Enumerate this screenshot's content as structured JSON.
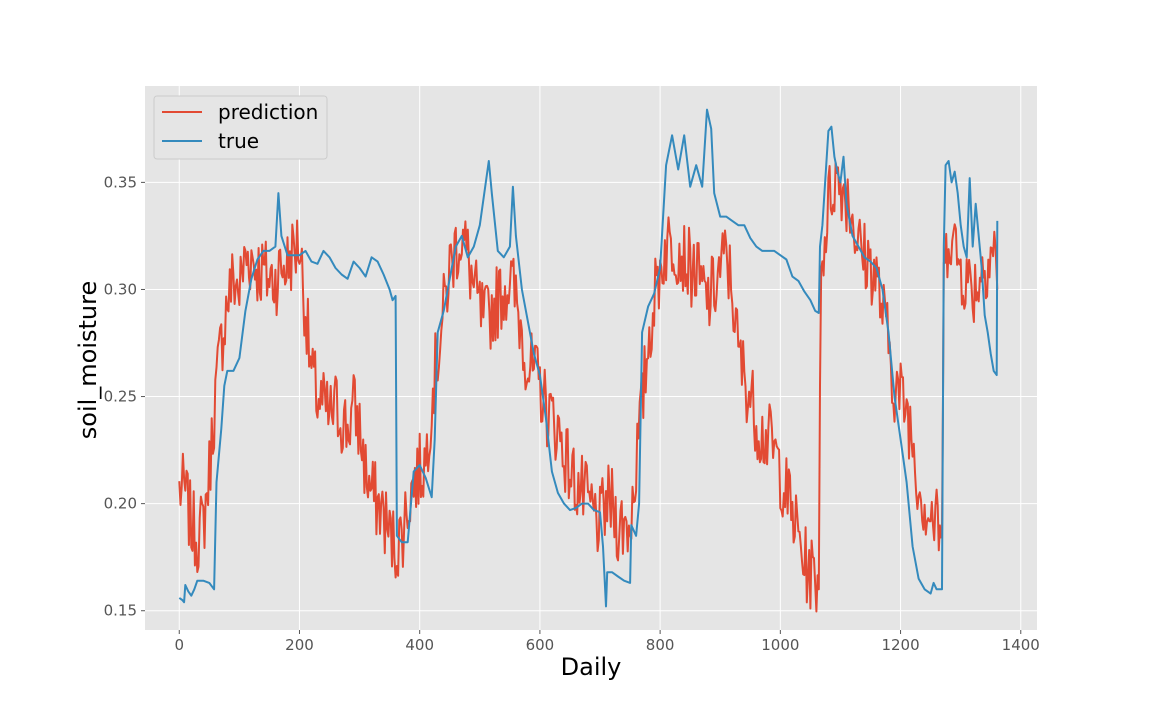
{
  "chart_data": {
    "type": "line",
    "title": "",
    "xlabel": "Daily",
    "ylabel": "soil_moisture",
    "xlim": [
      -57,
      1427
    ],
    "ylim": [
      0.141,
      0.395
    ],
    "xticks": [
      0,
      200,
      400,
      600,
      800,
      1000,
      1200,
      1400
    ],
    "xtick_labels": [
      "0",
      "200",
      "400",
      "600",
      "800",
      "1000",
      "1200",
      "1400"
    ],
    "yticks": [
      0.15,
      0.2,
      0.25,
      0.3,
      0.35
    ],
    "ytick_labels": [
      "0.15",
      "0.20",
      "0.25",
      "0.30",
      "0.35"
    ],
    "grid": true,
    "legend_position": "top-left",
    "series": [
      {
        "name": "prediction",
        "color": "#E24A33",
        "noisy": true,
        "points": [
          [
            0,
            0.207
          ],
          [
            10,
            0.205
          ],
          [
            20,
            0.19
          ],
          [
            30,
            0.185
          ],
          [
            40,
            0.19
          ],
          [
            50,
            0.215
          ],
          [
            60,
            0.25
          ],
          [
            70,
            0.275
          ],
          [
            80,
            0.295
          ],
          [
            90,
            0.305
          ],
          [
            100,
            0.3
          ],
          [
            110,
            0.315
          ],
          [
            120,
            0.315
          ],
          [
            130,
            0.31
          ],
          [
            140,
            0.308
          ],
          [
            150,
            0.305
          ],
          [
            160,
            0.305
          ],
          [
            170,
            0.31
          ],
          [
            180,
            0.312
          ],
          [
            190,
            0.318
          ],
          [
            200,
            0.322
          ],
          [
            210,
            0.29
          ],
          [
            220,
            0.26
          ],
          [
            230,
            0.25
          ],
          [
            240,
            0.245
          ],
          [
            250,
            0.24
          ],
          [
            260,
            0.245
          ],
          [
            270,
            0.24
          ],
          [
            280,
            0.235
          ],
          [
            290,
            0.245
          ],
          [
            300,
            0.235
          ],
          [
            310,
            0.215
          ],
          [
            320,
            0.205
          ],
          [
            330,
            0.2
          ],
          [
            340,
            0.195
          ],
          [
            350,
            0.185
          ],
          [
            360,
            0.18
          ],
          [
            370,
            0.185
          ],
          [
            380,
            0.2
          ],
          [
            390,
            0.21
          ],
          [
            400,
            0.215
          ],
          [
            410,
            0.22
          ],
          [
            420,
            0.25
          ],
          [
            430,
            0.27
          ],
          [
            440,
            0.29
          ],
          [
            450,
            0.31
          ],
          [
            460,
            0.32
          ],
          [
            470,
            0.325
          ],
          [
            480,
            0.315
          ],
          [
            490,
            0.3
          ],
          [
            500,
            0.29
          ],
          [
            510,
            0.285
          ],
          [
            520,
            0.29
          ],
          [
            530,
            0.295
          ],
          [
            540,
            0.3
          ],
          [
            550,
            0.305
          ],
          [
            560,
            0.295
          ],
          [
            570,
            0.28
          ],
          [
            580,
            0.265
          ],
          [
            590,
            0.26
          ],
          [
            600,
            0.255
          ],
          [
            610,
            0.245
          ],
          [
            620,
            0.24
          ],
          [
            630,
            0.235
          ],
          [
            640,
            0.225
          ],
          [
            650,
            0.215
          ],
          [
            660,
            0.21
          ],
          [
            670,
            0.205
          ],
          [
            680,
            0.2
          ],
          [
            690,
            0.195
          ],
          [
            700,
            0.19
          ],
          [
            710,
            0.2
          ],
          [
            720,
            0.2
          ],
          [
            730,
            0.19
          ],
          [
            740,
            0.19
          ],
          [
            750,
            0.19
          ],
          [
            760,
            0.22
          ],
          [
            770,
            0.245
          ],
          [
            780,
            0.275
          ],
          [
            790,
            0.295
          ],
          [
            800,
            0.31
          ],
          [
            810,
            0.32
          ],
          [
            820,
            0.322
          ],
          [
            830,
            0.32
          ],
          [
            840,
            0.315
          ],
          [
            850,
            0.31
          ],
          [
            860,
            0.308
          ],
          [
            870,
            0.3
          ],
          [
            880,
            0.295
          ],
          [
            890,
            0.3
          ],
          [
            900,
            0.31
          ],
          [
            910,
            0.315
          ],
          [
            920,
            0.3
          ],
          [
            930,
            0.27
          ],
          [
            940,
            0.26
          ],
          [
            950,
            0.25
          ],
          [
            960,
            0.24
          ],
          [
            970,
            0.232
          ],
          [
            980,
            0.23
          ],
          [
            990,
            0.225
          ],
          [
            1000,
            0.215
          ],
          [
            1010,
            0.205
          ],
          [
            1020,
            0.195
          ],
          [
            1030,
            0.185
          ],
          [
            1040,
            0.172
          ],
          [
            1050,
            0.168
          ],
          [
            1060,
            0.165
          ],
          [
            1064,
            0.16
          ],
          [
            1066,
            0.255
          ],
          [
            1068,
            0.31
          ],
          [
            1070,
            0.315
          ],
          [
            1080,
            0.34
          ],
          [
            1090,
            0.352
          ],
          [
            1100,
            0.35
          ],
          [
            1110,
            0.345
          ],
          [
            1120,
            0.335
          ],
          [
            1130,
            0.32
          ],
          [
            1140,
            0.315
          ],
          [
            1150,
            0.312
          ],
          [
            1160,
            0.305
          ],
          [
            1170,
            0.29
          ],
          [
            1180,
            0.275
          ],
          [
            1190,
            0.255
          ],
          [
            1200,
            0.25
          ],
          [
            1210,
            0.245
          ],
          [
            1220,
            0.23
          ],
          [
            1230,
            0.21
          ],
          [
            1240,
            0.2
          ],
          [
            1250,
            0.195
          ],
          [
            1260,
            0.19
          ],
          [
            1269,
            0.187
          ],
          [
            1272,
            0.3
          ],
          [
            1280,
            0.33
          ],
          [
            1290,
            0.32
          ],
          [
            1300,
            0.31
          ],
          [
            1310,
            0.305
          ],
          [
            1320,
            0.3
          ],
          [
            1330,
            0.305
          ],
          [
            1340,
            0.312
          ],
          [
            1350,
            0.318
          ],
          [
            1358,
            0.32
          ],
          [
            1361,
            0.3
          ]
        ]
      },
      {
        "name": "true",
        "color": "#348ABD",
        "noisy": false,
        "points": [
          [
            0,
            0.156
          ],
          [
            5,
            0.155
          ],
          [
            8,
            0.154
          ],
          [
            10,
            0.162
          ],
          [
            15,
            0.159
          ],
          [
            20,
            0.157
          ],
          [
            25,
            0.16
          ],
          [
            30,
            0.164
          ],
          [
            40,
            0.164
          ],
          [
            50,
            0.163
          ],
          [
            58,
            0.16
          ],
          [
            62,
            0.21
          ],
          [
            70,
            0.235
          ],
          [
            75,
            0.255
          ],
          [
            80,
            0.262
          ],
          [
            90,
            0.262
          ],
          [
            100,
            0.268
          ],
          [
            110,
            0.29
          ],
          [
            120,
            0.305
          ],
          [
            130,
            0.314
          ],
          [
            140,
            0.318
          ],
          [
            150,
            0.318
          ],
          [
            160,
            0.32
          ],
          [
            165,
            0.345
          ],
          [
            170,
            0.325
          ],
          [
            180,
            0.316
          ],
          [
            190,
            0.316
          ],
          [
            200,
            0.316
          ],
          [
            210,
            0.318
          ],
          [
            220,
            0.313
          ],
          [
            230,
            0.312
          ],
          [
            240,
            0.318
          ],
          [
            250,
            0.315
          ],
          [
            260,
            0.31
          ],
          [
            270,
            0.307
          ],
          [
            280,
            0.305
          ],
          [
            290,
            0.313
          ],
          [
            300,
            0.31
          ],
          [
            310,
            0.306
          ],
          [
            320,
            0.315
          ],
          [
            330,
            0.313
          ],
          [
            340,
            0.307
          ],
          [
            350,
            0.3
          ],
          [
            355,
            0.295
          ],
          [
            360,
            0.297
          ],
          [
            362,
            0.185
          ],
          [
            370,
            0.182
          ],
          [
            380,
            0.182
          ],
          [
            390,
            0.215
          ],
          [
            400,
            0.218
          ],
          [
            410,
            0.212
          ],
          [
            420,
            0.203
          ],
          [
            425,
            0.23
          ],
          [
            430,
            0.28
          ],
          [
            440,
            0.29
          ],
          [
            450,
            0.305
          ],
          [
            460,
            0.32
          ],
          [
            470,
            0.325
          ],
          [
            480,
            0.315
          ],
          [
            490,
            0.32
          ],
          [
            500,
            0.33
          ],
          [
            510,
            0.35
          ],
          [
            515,
            0.36
          ],
          [
            520,
            0.345
          ],
          [
            530,
            0.318
          ],
          [
            540,
            0.315
          ],
          [
            550,
            0.32
          ],
          [
            555,
            0.348
          ],
          [
            560,
            0.325
          ],
          [
            570,
            0.3
          ],
          [
            580,
            0.285
          ],
          [
            590,
            0.27
          ],
          [
            600,
            0.26
          ],
          [
            610,
            0.24
          ],
          [
            620,
            0.215
          ],
          [
            630,
            0.205
          ],
          [
            640,
            0.2
          ],
          [
            650,
            0.197
          ],
          [
            660,
            0.198
          ],
          [
            670,
            0.2
          ],
          [
            680,
            0.2
          ],
          [
            690,
            0.197
          ],
          [
            700,
            0.196
          ],
          [
            705,
            0.18
          ],
          [
            710,
            0.152
          ],
          [
            712,
            0.168
          ],
          [
            720,
            0.168
          ],
          [
            730,
            0.166
          ],
          [
            740,
            0.164
          ],
          [
            750,
            0.163
          ],
          [
            752,
            0.19
          ],
          [
            760,
            0.185
          ],
          [
            765,
            0.2
          ],
          [
            770,
            0.28
          ],
          [
            780,
            0.292
          ],
          [
            790,
            0.298
          ],
          [
            800,
            0.31
          ],
          [
            810,
            0.358
          ],
          [
            820,
            0.372
          ],
          [
            830,
            0.356
          ],
          [
            840,
            0.372
          ],
          [
            850,
            0.348
          ],
          [
            860,
            0.358
          ],
          [
            870,
            0.348
          ],
          [
            878,
            0.384
          ],
          [
            885,
            0.375
          ],
          [
            890,
            0.345
          ],
          [
            900,
            0.334
          ],
          [
            910,
            0.334
          ],
          [
            920,
            0.332
          ],
          [
            930,
            0.33
          ],
          [
            940,
            0.33
          ],
          [
            950,
            0.324
          ],
          [
            960,
            0.32
          ],
          [
            970,
            0.318
          ],
          [
            980,
            0.318
          ],
          [
            990,
            0.318
          ],
          [
            1000,
            0.316
          ],
          [
            1010,
            0.314
          ],
          [
            1020,
            0.306
          ],
          [
            1030,
            0.304
          ],
          [
            1040,
            0.299
          ],
          [
            1050,
            0.295
          ],
          [
            1058,
            0.29
          ],
          [
            1064,
            0.289
          ],
          [
            1066,
            0.32
          ],
          [
            1070,
            0.33
          ],
          [
            1075,
            0.352
          ],
          [
            1080,
            0.374
          ],
          [
            1085,
            0.376
          ],
          [
            1090,
            0.362
          ],
          [
            1095,
            0.355
          ],
          [
            1100,
            0.35
          ],
          [
            1105,
            0.362
          ],
          [
            1110,
            0.34
          ],
          [
            1120,
            0.325
          ],
          [
            1130,
            0.32
          ],
          [
            1140,
            0.315
          ],
          [
            1150,
            0.313
          ],
          [
            1160,
            0.31
          ],
          [
            1170,
            0.3
          ],
          [
            1180,
            0.28
          ],
          [
            1190,
            0.25
          ],
          [
            1200,
            0.23
          ],
          [
            1210,
            0.21
          ],
          [
            1220,
            0.18
          ],
          [
            1230,
            0.165
          ],
          [
            1240,
            0.16
          ],
          [
            1250,
            0.158
          ],
          [
            1255,
            0.163
          ],
          [
            1260,
            0.16
          ],
          [
            1269,
            0.16
          ],
          [
            1272,
            0.32
          ],
          [
            1275,
            0.358
          ],
          [
            1280,
            0.36
          ],
          [
            1285,
            0.35
          ],
          [
            1290,
            0.355
          ],
          [
            1295,
            0.345
          ],
          [
            1300,
            0.33
          ],
          [
            1305,
            0.32
          ],
          [
            1310,
            0.315
          ],
          [
            1315,
            0.352
          ],
          [
            1320,
            0.32
          ],
          [
            1325,
            0.34
          ],
          [
            1330,
            0.325
          ],
          [
            1335,
            0.31
          ],
          [
            1340,
            0.288
          ],
          [
            1345,
            0.28
          ],
          [
            1350,
            0.27
          ],
          [
            1355,
            0.262
          ],
          [
            1360,
            0.26
          ],
          [
            1361,
            0.332
          ]
        ]
      }
    ]
  }
}
